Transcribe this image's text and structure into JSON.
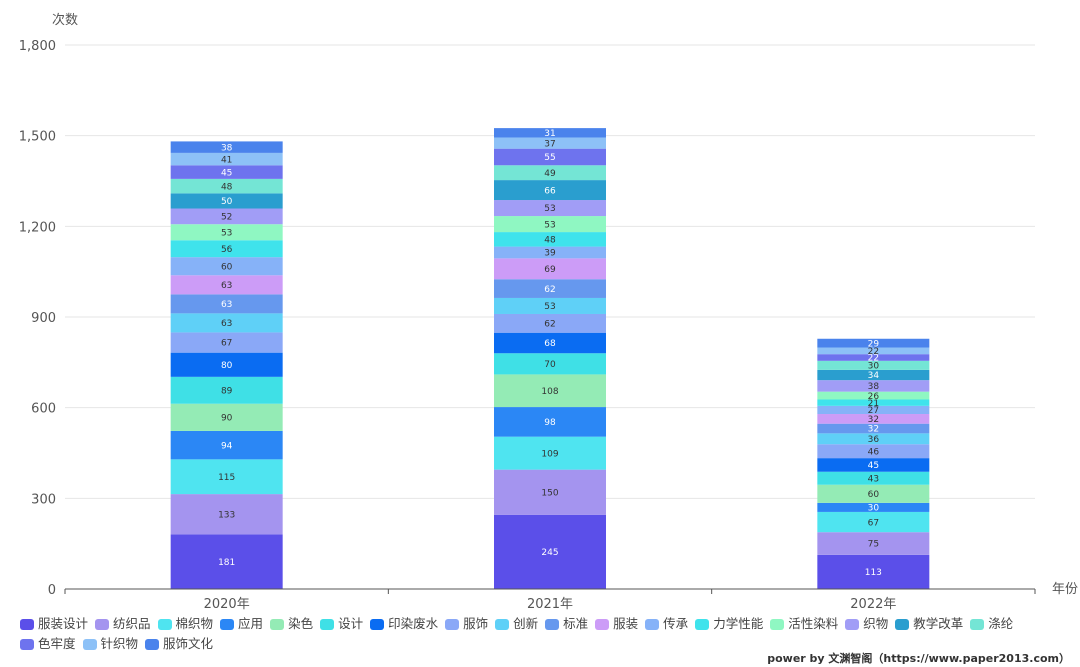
{
  "chart_data": {
    "type": "bar",
    "stacked": true,
    "xlabel": "年份",
    "ylabel": "次数",
    "ylim": [
      0,
      1800
    ],
    "yticks": [
      "0",
      "300",
      "600",
      "900",
      "1,200",
      "1,500",
      "1,800"
    ],
    "ytick_values": [
      0,
      300,
      600,
      900,
      1200,
      1500,
      1800
    ],
    "categories": [
      "2020年",
      "2021年",
      "2022年"
    ],
    "grid": true,
    "legend_position": "bottom",
    "series": [
      {
        "name": "服装设计",
        "color": "#5B4FE9",
        "values": [
          181,
          245,
          113
        ]
      },
      {
        "name": "纺织品",
        "color": "#A494EF",
        "values": [
          133,
          150,
          75
        ]
      },
      {
        "name": "棉织物",
        "color": "#4FE4F0",
        "values": [
          115,
          109,
          67
        ]
      },
      {
        "name": "应用",
        "color": "#2B87F5",
        "values": [
          94,
          98,
          30
        ]
      },
      {
        "name": "染色",
        "color": "#94EBB5",
        "values": [
          90,
          108,
          60
        ]
      },
      {
        "name": "设计",
        "color": "#3FE0E6",
        "values": [
          89,
          70,
          43
        ]
      },
      {
        "name": "印染废水",
        "color": "#0A6CF2",
        "values": [
          80,
          68,
          45
        ]
      },
      {
        "name": "服饰",
        "color": "#8AA8F7",
        "values": [
          67,
          62,
          46
        ]
      },
      {
        "name": "创新",
        "color": "#5FD0F7",
        "values": [
          63,
          53,
          36
        ]
      },
      {
        "name": "标准",
        "color": "#6698EE",
        "values": [
          63,
          62,
          32
        ]
      },
      {
        "name": "服装",
        "color": "#CC9CF7",
        "values": [
          63,
          69,
          32
        ]
      },
      {
        "name": "传承",
        "color": "#86B2F8",
        "values": [
          60,
          39,
          27
        ]
      },
      {
        "name": "力学性能",
        "color": "#3FE3EC",
        "values": [
          56,
          48,
          21
        ]
      },
      {
        "name": "活性染料",
        "color": "#8FF7C2",
        "values": [
          53,
          53,
          26
        ]
      },
      {
        "name": "织物",
        "color": "#A19DF6",
        "values": [
          52,
          53,
          38
        ]
      },
      {
        "name": "教学改革",
        "color": "#2A9ECF",
        "values": [
          50,
          66,
          34
        ]
      },
      {
        "name": "涤纶",
        "color": "#74E5D5",
        "values": [
          48,
          49,
          30
        ]
      },
      {
        "name": "色牢度",
        "color": "#6E73EE",
        "values": [
          45,
          55,
          22
        ]
      },
      {
        "name": "针织物",
        "color": "#8DC1F7",
        "values": [
          41,
          37,
          22
        ]
      },
      {
        "name": "服饰文化",
        "color": "#4A83EC",
        "values": [
          38,
          31,
          29
        ]
      }
    ]
  },
  "credit": "power by 文渊智阁（https://www.paper2013.com）"
}
